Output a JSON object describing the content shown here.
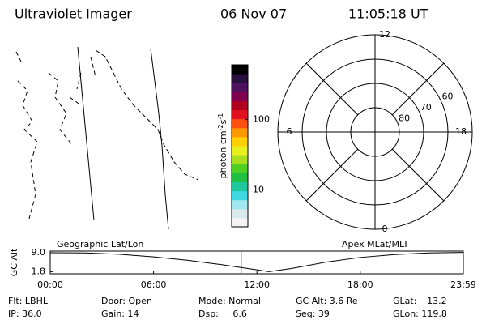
{
  "header": {
    "title": "Ultraviolet Imager",
    "date": "06 Nov 07",
    "time": "11:05:18 UT"
  },
  "colorbar": {
    "label": "photon cm",
    "exp1": "-2",
    "unit2": "s",
    "exp2": "-1",
    "log": true,
    "clim": [
      3,
      600
    ],
    "ticks": [
      10,
      100
    ],
    "colors": [
      "#f4f4f4",
      "#d8e8ec",
      "#a0e8f0",
      "#40d8e0",
      "#20c8a0",
      "#20c040",
      "#50d020",
      "#a8e020",
      "#e8f020",
      "#ffd000",
      "#ff9800",
      "#ff5010",
      "#e01020",
      "#b00020",
      "#800050",
      "#501060",
      "#281040",
      "#000000"
    ]
  },
  "polar": {
    "latlim": [
      90,
      50
    ],
    "rings": [
      80,
      70,
      60
    ],
    "mlt": [
      {
        "value": 12,
        "label": "12"
      },
      {
        "value": 6,
        "label": "6"
      },
      {
        "value": 0,
        "label": "0"
      },
      {
        "value": 18,
        "label": "18"
      }
    ]
  },
  "altitude": {
    "ylabel": "GC Alt",
    "left_label": "Geographic Lat/Lon",
    "right_label": "Apex MLat/MLT",
    "xlim": [
      0,
      23.983
    ],
    "ylim": [
      1.0,
      9.6
    ],
    "xticks": [
      {
        "value": 0,
        "label": "00:00"
      },
      {
        "value": 6,
        "label": "06:00"
      },
      {
        "value": 12,
        "label": "12:00"
      },
      {
        "value": 18,
        "label": "18:00"
      },
      {
        "value": 23.983,
        "label": "23:59"
      }
    ],
    "yticks": [
      {
        "value": 9,
        "label": "9.0"
      },
      1.8
    ],
    "hours": [
      0,
      2,
      4,
      6,
      8,
      10,
      12,
      12.7,
      14,
      16,
      18,
      20,
      22,
      23.98
    ],
    "alt": [
      9.0,
      8.9,
      8.4,
      7.4,
      6.1,
      4.4,
      2.5,
      1.8,
      3.0,
      5.4,
      7.2,
      8.3,
      8.9,
      9.1
    ],
    "marker": 11.09,
    "marker_color": "#d02020"
  },
  "footer": [
    [
      "Flt: LBHL",
      "Door: Open",
      "Mode: Normal",
      "GC Alt: 3.6 Re",
      "GLat: −13.2"
    ],
    [
      "IP: 36.0",
      "Gain: 14",
      "Dsp:     6.6",
      "Seq: 39",
      "GLon: 119.8"
    ]
  ]
}
